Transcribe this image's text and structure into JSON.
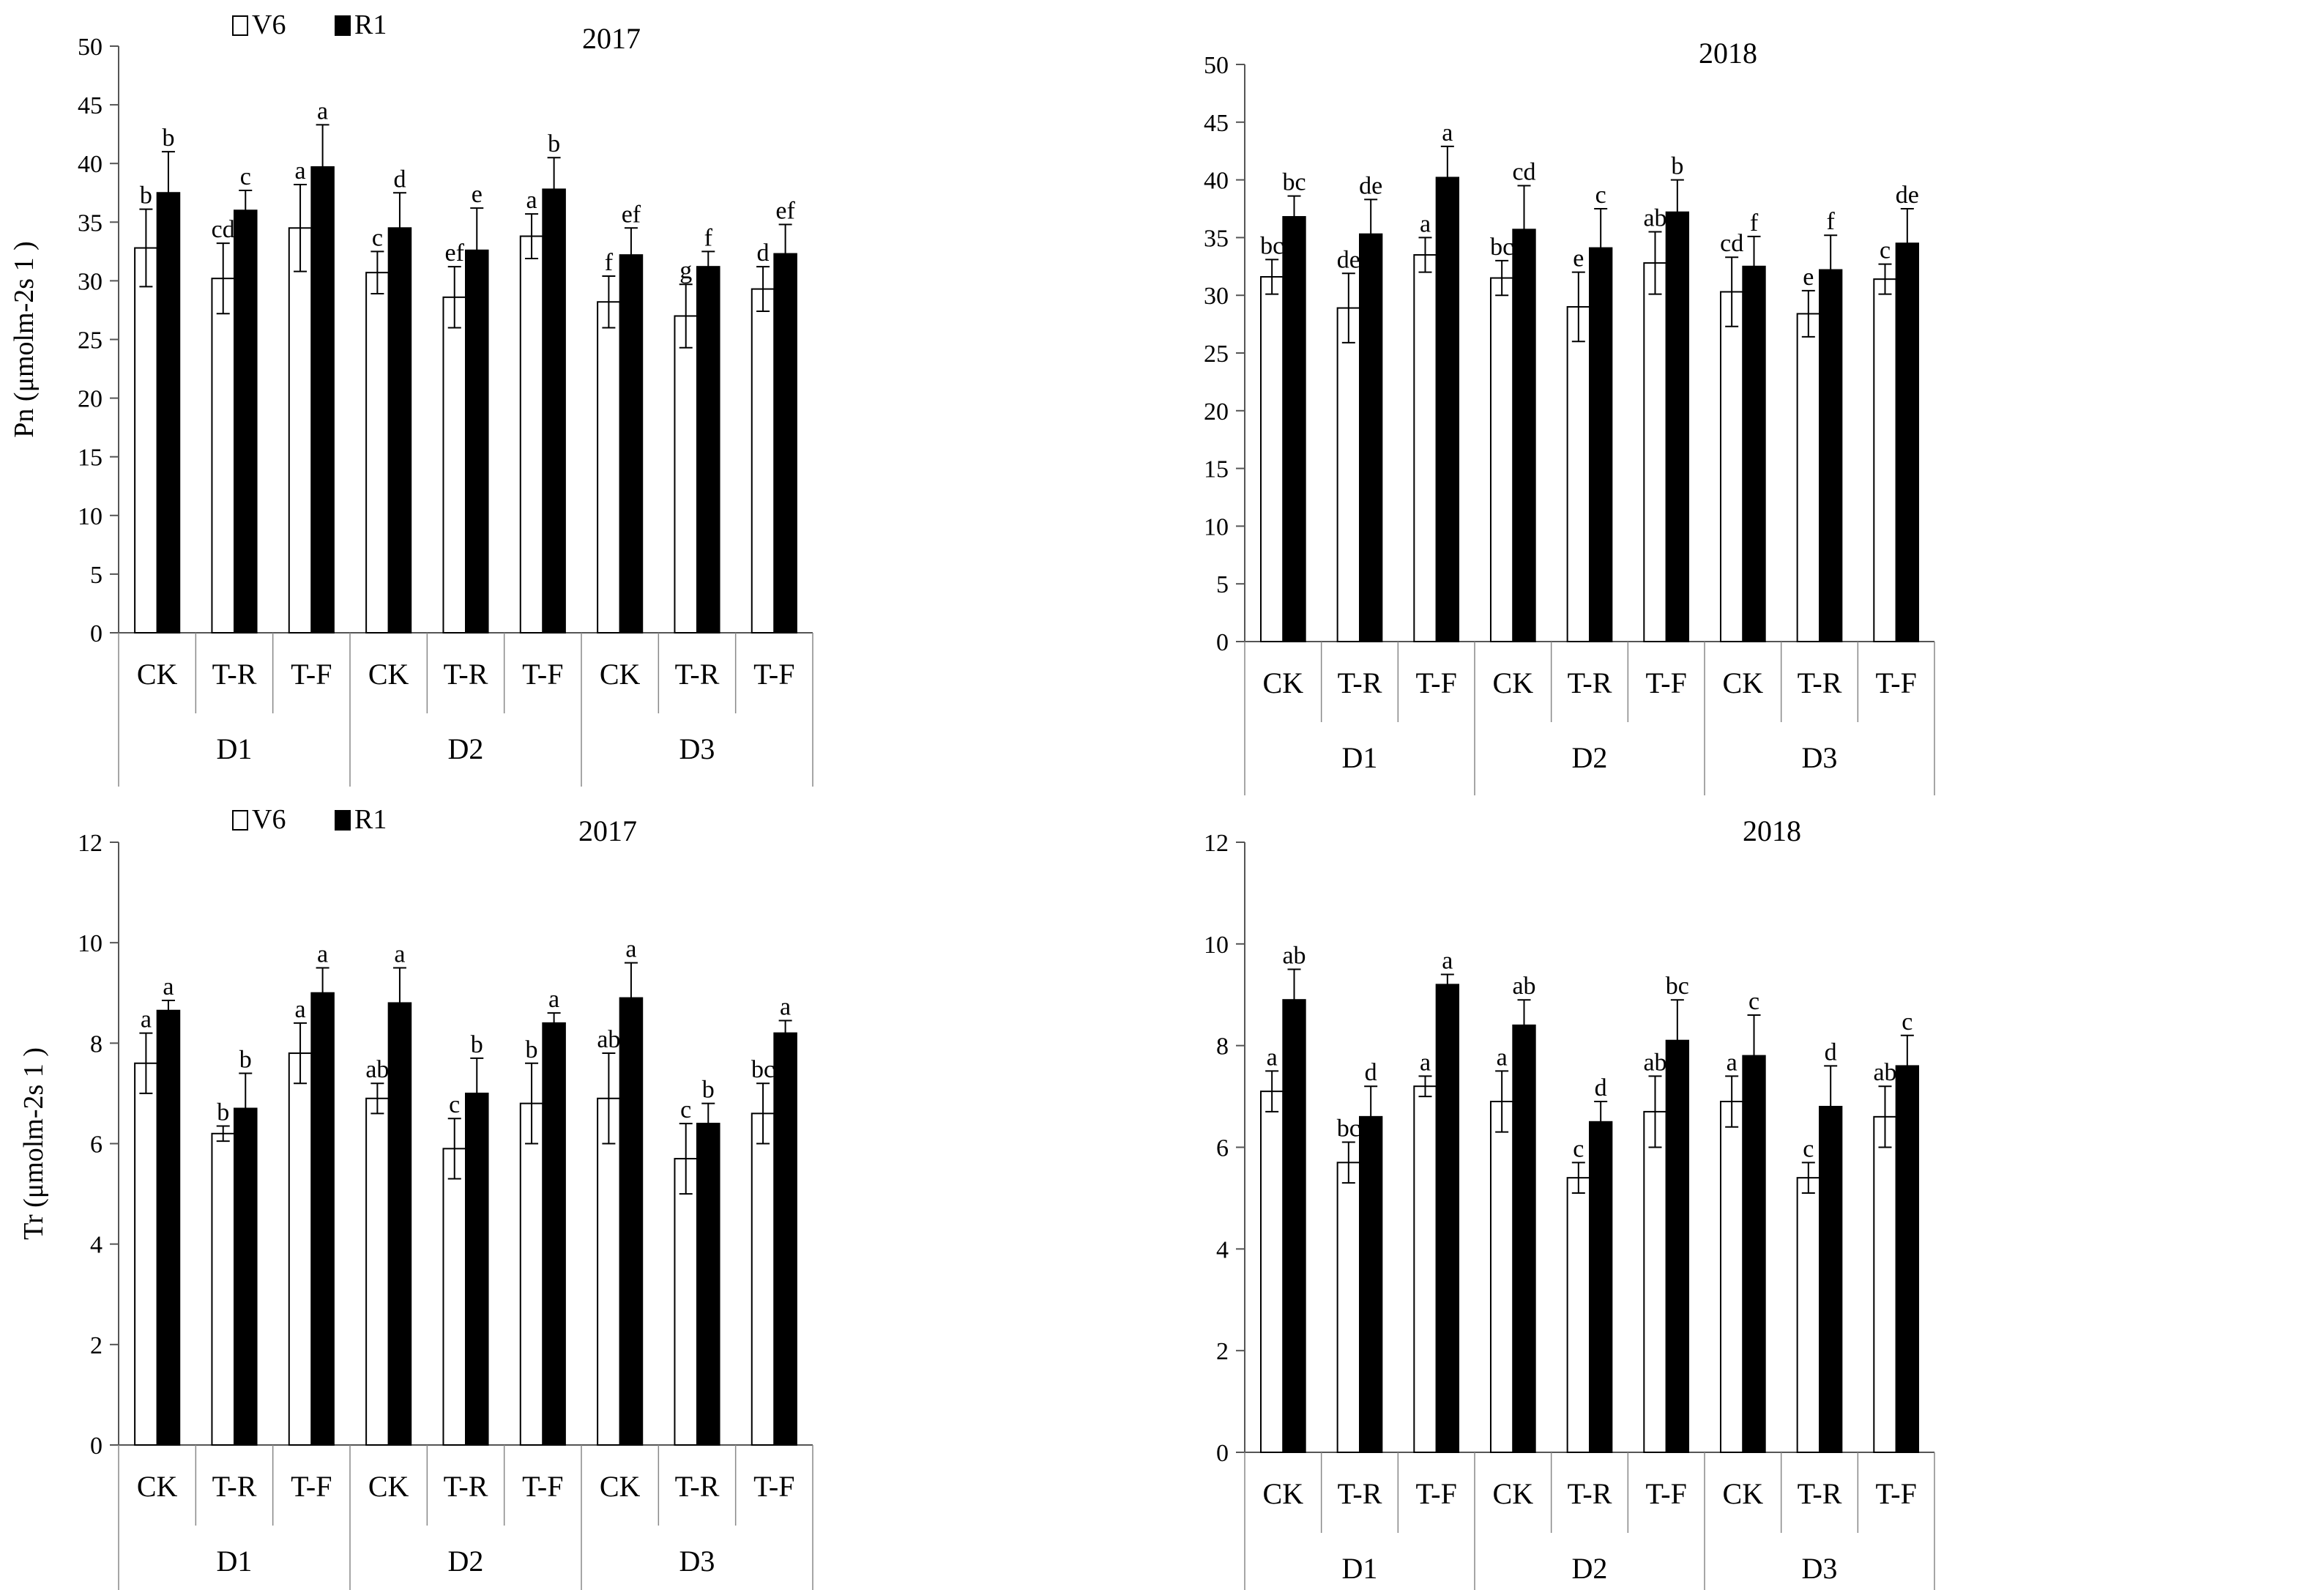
{
  "chart_data": [
    {
      "id": "pn-2017",
      "type": "bar",
      "title": "2017",
      "ylabel": "Pn (μmolm-2s 1 )",
      "xlabel": "",
      "ylim": [
        0,
        50
      ],
      "yticks": [
        "0",
        "5",
        "10",
        "15",
        "20",
        "25",
        "30",
        "35",
        "40",
        "45",
        "50"
      ],
      "categories": [
        "CK",
        "T-R",
        "T-F",
        "CK",
        "T-R",
        "T-F",
        "CK",
        "T-R",
        "T-F"
      ],
      "groups": [
        "D1",
        "D2",
        "D3"
      ],
      "legend": true,
      "series": [
        {
          "name": "V6",
          "color": "#ffffff",
          "values": [
            32.8,
            30.2,
            34.5,
            30.7,
            28.6,
            33.8,
            28.2,
            27.0,
            29.3
          ],
          "errors": [
            3.3,
            3.0,
            3.7,
            1.8,
            2.6,
            1.9,
            2.2,
            2.7,
            1.9
          ],
          "labels": [
            "b",
            "cd",
            "a",
            "c",
            "ef",
            "a",
            "f",
            "g",
            "d"
          ]
        },
        {
          "name": "R1",
          "color": "#000000",
          "values": [
            37.5,
            36.0,
            39.7,
            34.5,
            32.6,
            37.8,
            32.2,
            31.2,
            32.3
          ],
          "errors": [
            3.5,
            1.7,
            3.6,
            3.0,
            3.6,
            2.7,
            2.3,
            1.3,
            2.5
          ],
          "labels": [
            "b",
            "c",
            "a",
            "d",
            "e",
            "b",
            "ef",
            "f",
            "ef"
          ]
        }
      ]
    },
    {
      "id": "pn-2018",
      "type": "bar",
      "title": "2018",
      "ylabel": "",
      "xlabel": "",
      "ylim": [
        0,
        50
      ],
      "yticks": [
        "0",
        "5",
        "10",
        "15",
        "20",
        "25",
        "30",
        "35",
        "40",
        "45",
        "50"
      ],
      "categories": [
        "CK",
        "T-R",
        "T-F",
        "CK",
        "T-R",
        "T-F",
        "CK",
        "T-R",
        "T-F"
      ],
      "groups": [
        "D1",
        "D2",
        "D3"
      ],
      "legend": false,
      "series": [
        {
          "name": "V6",
          "color": "#ffffff",
          "values": [
            31.6,
            28.9,
            33.5,
            31.5,
            29.0,
            32.8,
            30.3,
            28.4,
            31.4
          ],
          "errors": [
            1.5,
            3.0,
            1.5,
            1.5,
            3.0,
            2.7,
            3.0,
            2.0,
            1.3
          ],
          "labels": [
            "bc",
            "de",
            "a",
            "bc",
            "e",
            "ab",
            "cd",
            "e",
            "c"
          ]
        },
        {
          "name": "R1",
          "color": "#000000",
          "values": [
            36.8,
            35.3,
            40.2,
            35.7,
            34.1,
            37.2,
            32.5,
            32.2,
            34.5
          ],
          "errors": [
            1.8,
            3.0,
            2.7,
            3.8,
            3.4,
            2.8,
            2.6,
            3.0,
            3.0
          ],
          "labels": [
            "bc",
            "de",
            "a",
            "cd",
            "c",
            "b",
            "f",
            "f",
            "de"
          ]
        }
      ]
    },
    {
      "id": "tr-2017",
      "type": "bar",
      "title": "2017",
      "ylabel": "Tr (μmolm-2s 1 )",
      "xlabel": "",
      "ylim": [
        0,
        12
      ],
      "yticks": [
        "0",
        "2",
        "4",
        "6",
        "8",
        "10",
        "12"
      ],
      "categories": [
        "CK",
        "T-R",
        "T-F",
        "CK",
        "T-R",
        "T-F",
        "CK",
        "T-R",
        "T-F"
      ],
      "groups": [
        "D1",
        "D2",
        "D3"
      ],
      "legend": true,
      "series": [
        {
          "name": "V6",
          "color": "#ffffff",
          "values": [
            7.6,
            6.2,
            7.8,
            6.9,
            5.9,
            6.8,
            6.9,
            5.7,
            6.6
          ],
          "errors": [
            0.6,
            0.15,
            0.6,
            0.3,
            0.6,
            0.8,
            0.9,
            0.7,
            0.6
          ],
          "labels": [
            "a",
            "b",
            "a",
            "ab",
            "c",
            "b",
            "ab",
            "c",
            "bc"
          ]
        },
        {
          "name": "R1",
          "color": "#000000",
          "values": [
            8.65,
            6.7,
            9.0,
            8.8,
            7.0,
            8.4,
            8.9,
            6.4,
            8.2
          ],
          "errors": [
            0.2,
            0.7,
            0.5,
            0.7,
            0.7,
            0.2,
            0.7,
            0.4,
            0.25
          ],
          "labels": [
            "a",
            "b",
            "a",
            "a",
            "b",
            "a",
            "a",
            "b",
            "a"
          ]
        }
      ]
    },
    {
      "id": "tr-2018",
      "type": "bar",
      "title": "2018",
      "ylabel": "",
      "xlabel": "",
      "ylim": [
        0,
        12
      ],
      "yticks": [
        "0",
        "2",
        "4",
        "6",
        "8",
        "10",
        "12"
      ],
      "categories": [
        "CK",
        "T-R",
        "T-F",
        "CK",
        "T-R",
        "T-F",
        "CK",
        "T-R",
        "T-F"
      ],
      "groups": [
        "D1",
        "D2",
        "D3"
      ],
      "legend": false,
      "series": [
        {
          "name": "V6",
          "color": "#ffffff",
          "values": [
            7.1,
            5.7,
            7.2,
            6.9,
            5.4,
            6.7,
            6.9,
            5.4,
            6.6
          ],
          "errors": [
            0.4,
            0.4,
            0.2,
            0.6,
            0.3,
            0.7,
            0.5,
            0.3,
            0.6
          ],
          "labels": [
            "a",
            "bc",
            "a",
            "a",
            "c",
            "ab",
            "a",
            "c",
            "ab"
          ]
        },
        {
          "name": "R1",
          "color": "#000000",
          "values": [
            8.9,
            6.6,
            9.2,
            8.4,
            6.5,
            8.1,
            7.8,
            6.8,
            7.6
          ],
          "errors": [
            0.6,
            0.6,
            0.2,
            0.5,
            0.4,
            0.8,
            0.8,
            0.8,
            0.6
          ],
          "labels": [
            "ab",
            "d",
            "a",
            "ab",
            "d",
            "bc",
            "c",
            "d",
            "c"
          ]
        }
      ]
    }
  ]
}
